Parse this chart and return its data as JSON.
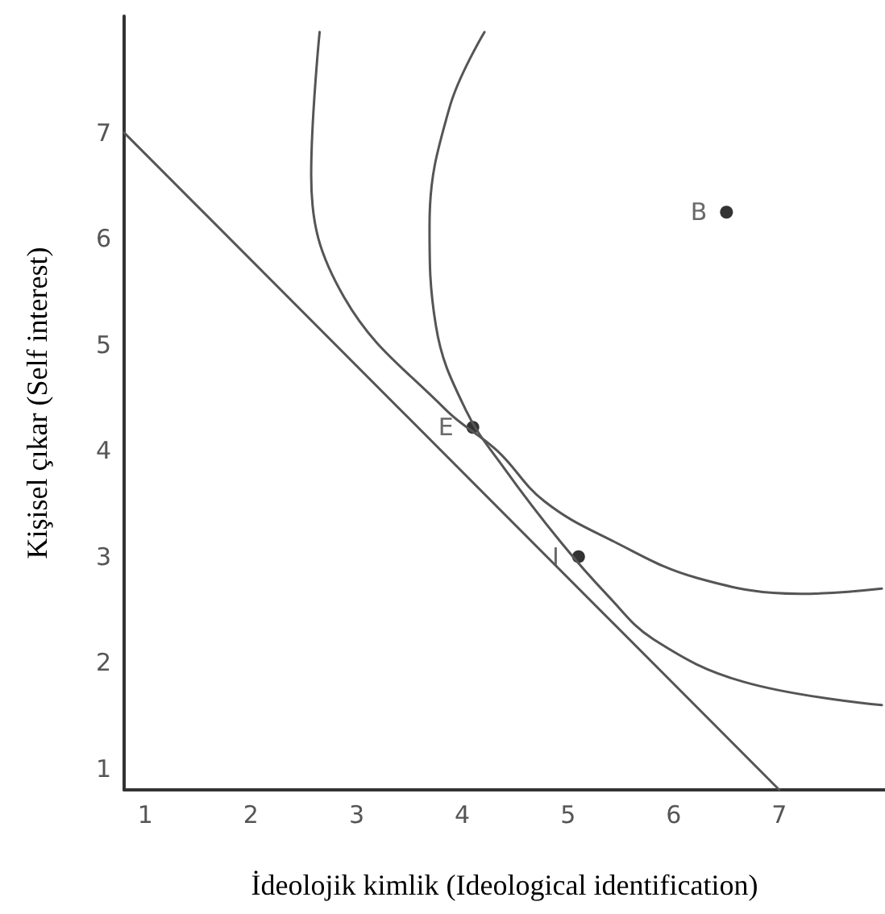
{
  "chart_data": {
    "type": "line",
    "xlabel": "İdeolojik kimlik (Ideological identification)",
    "ylabel": "Kişisel çıkar (Self interest)",
    "xlim": [
      0.8,
      8
    ],
    "ylim": [
      0.8,
      8.1
    ],
    "xticks": [
      1,
      2,
      3,
      4,
      5,
      6,
      7
    ],
    "yticks": [
      1,
      2,
      3,
      4,
      5,
      6,
      7
    ],
    "grid": false,
    "marker": "none",
    "line_style": "solid",
    "series": [
      {
        "color": "#555555",
        "x": [
          0.8,
          7
        ],
        "values": [
          7,
          0.8
        ]
      },
      {
        "color": "#555555",
        "x": [
          2.65,
          2.57,
          2.88,
          3.84,
          4.33,
          4.78,
          5.44,
          6.22,
          7.2,
          7.97
        ],
        "values": [
          7.95,
          6.6,
          5.45,
          4.39,
          4.0,
          3.52,
          3.14,
          2.8,
          2.65,
          2.7
        ]
      },
      {
        "color": "#555555",
        "x": [
          4.21,
          3.88,
          3.69,
          3.75,
          4.03,
          4.4,
          4.93,
          5.38,
          5.81,
          6.66,
          7.97
        ],
        "values": [
          7.95,
          7.24,
          6.13,
          5.18,
          4.39,
          3.83,
          3.14,
          2.63,
          2.22,
          1.82,
          1.6
        ]
      },
      {
        "type": "scatter",
        "marker": "circle",
        "color": "#000000",
        "x": [
          6.5,
          4.1,
          5.1
        ],
        "values": [
          6.25,
          4.22,
          3.0
        ]
      }
    ],
    "annotations": [
      {
        "text": "B",
        "x": 6.5,
        "y": 6.25
      },
      {
        "text": "E",
        "x": 4.1,
        "y": 4.22
      },
      {
        "text": "I",
        "x": 5.1,
        "y": 3.0
      }
    ]
  }
}
